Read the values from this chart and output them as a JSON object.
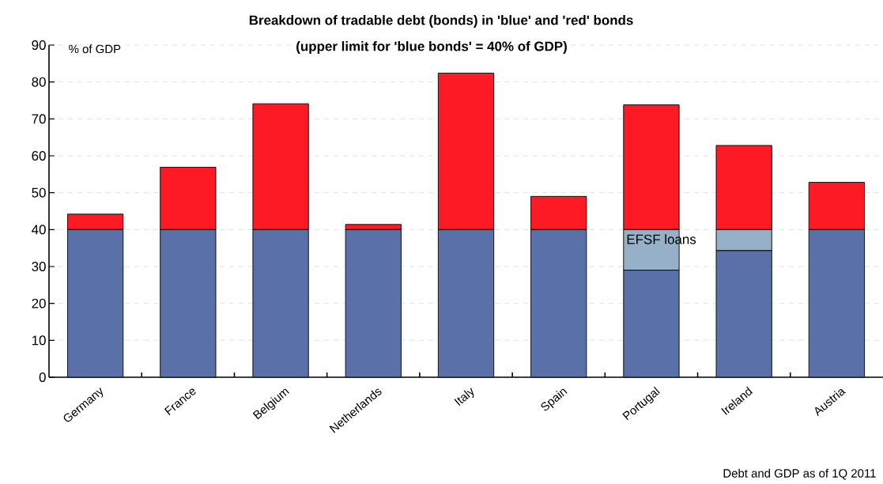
{
  "chart_data": {
    "type": "bar",
    "stacked": true,
    "title": "Breakdown of tradable debt (bonds) in 'blue' and 'red' bonds",
    "subtitle": "(upper limit for 'blue bonds' = 40% of GDP)",
    "ylabel": "% of GDP",
    "categories": [
      "Germany",
      "France",
      "Belgium",
      "Netherlands",
      "Italy",
      "Spain",
      "Portugal",
      "Ireland",
      "Austria"
    ],
    "series": [
      {
        "color": "#5970a8",
        "values": [
          40,
          40,
          40,
          40,
          40,
          40,
          29,
          34.3,
          40
        ]
      },
      {
        "name": "EFSF loans",
        "color": "#96b0c8",
        "values": [
          0,
          0,
          0,
          0,
          0,
          0,
          11,
          5.7,
          0
        ]
      },
      {
        "color": "#fe1a24",
        "values": [
          4.2,
          16.9,
          34.1,
          1.4,
          42.4,
          9.0,
          33.8,
          22.8,
          12.8
        ]
      }
    ],
    "ylim": [
      0,
      90
    ],
    "yticks": [
      0,
      10,
      20,
      30,
      40,
      50,
      60,
      70,
      80,
      90
    ],
    "grid": "y",
    "annotations": [
      "Debt and GDP as of 1Q 2011"
    ]
  }
}
